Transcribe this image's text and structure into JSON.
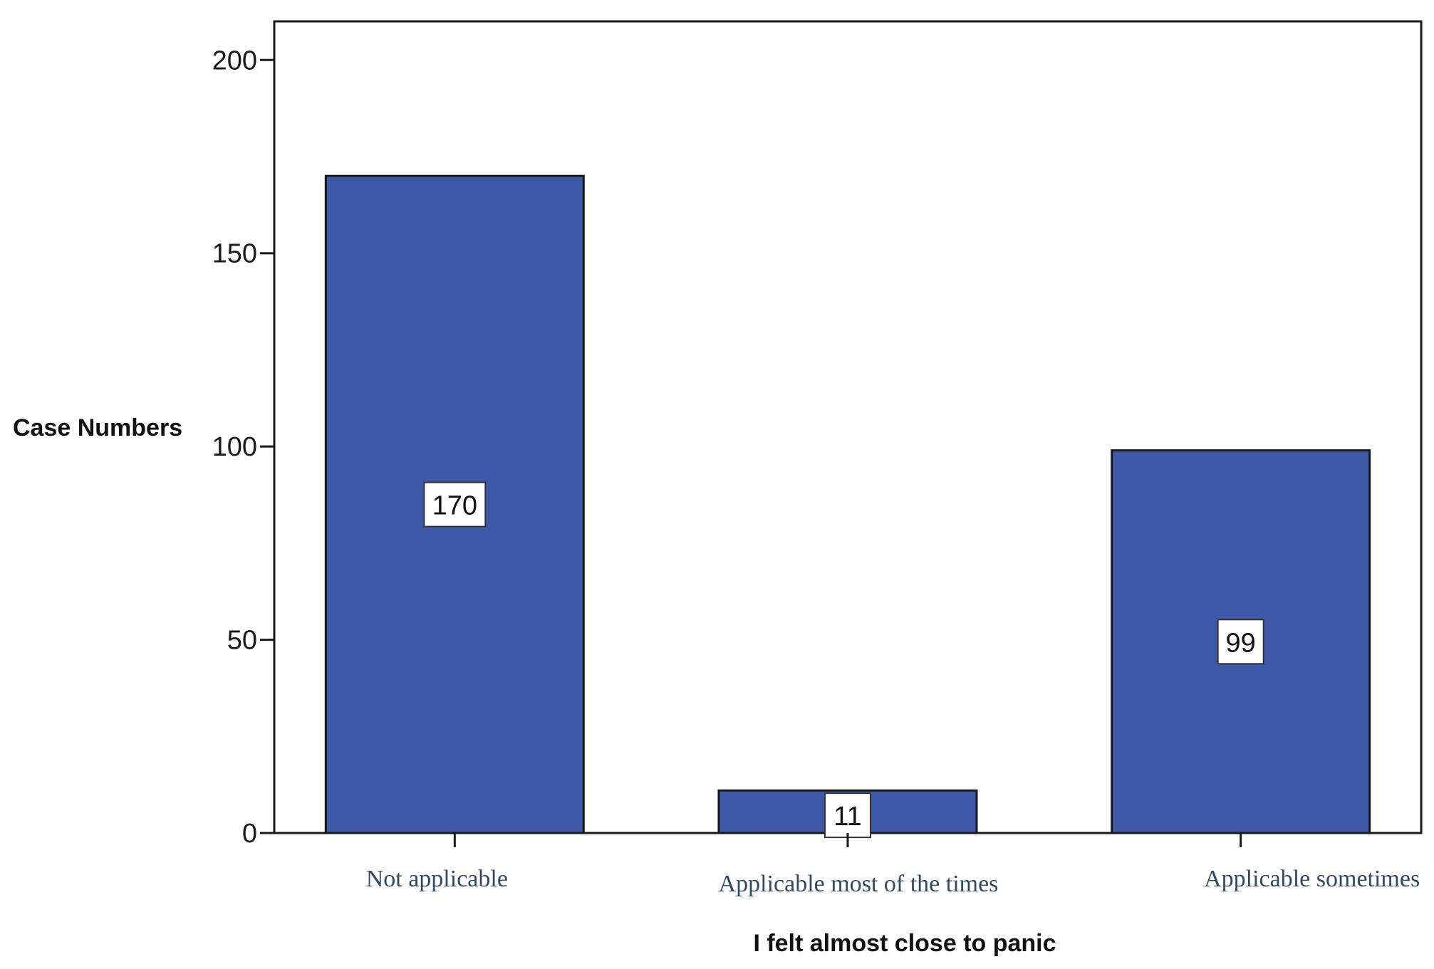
{
  "chart_data": {
    "type": "bar",
    "title": "",
    "xlabel": "I felt almost close to panic",
    "ylabel": "Case Numbers",
    "categories": [
      "Not applicable",
      "Applicable most of the times",
      "Applicable sometimes"
    ],
    "values": [
      170,
      11,
      99
    ],
    "data_labels": [
      "170",
      "11",
      "99"
    ],
    "ylim": [
      0,
      210
    ],
    "yticks": [
      0,
      50,
      100,
      150,
      200
    ],
    "ytick_labels": [
      "0",
      "50",
      "100",
      "150",
      "200"
    ],
    "grid": false,
    "legend": "none",
    "bar_color": "#3d58a6",
    "bar_edge_color": "#1a1a1a"
  }
}
